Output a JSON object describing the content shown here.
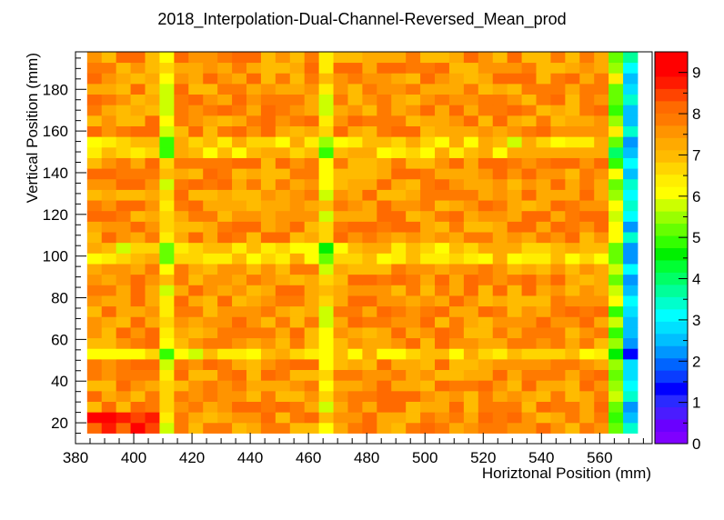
{
  "chart_data": {
    "type": "heatmap",
    "title": "2018_Interpolation-Dual-Channel-Reversed_Mean_prod",
    "xlabel": "Horiztonal Position (mm)",
    "ylabel": "Vertical Position (mm)",
    "xlim": [
      380,
      578
    ],
    "ylim": [
      10,
      198
    ],
    "zlim": [
      0,
      9.5
    ],
    "x_ticks": [
      380,
      400,
      420,
      440,
      460,
      480,
      500,
      520,
      540,
      560
    ],
    "y_ticks": [
      20,
      40,
      60,
      80,
      100,
      120,
      140,
      160,
      180
    ],
    "z_ticks": [
      0,
      1,
      2,
      3,
      4,
      5,
      6,
      7,
      8,
      9
    ],
    "x_edges": [
      384,
      573
    ],
    "y_edges": [
      15,
      198
    ],
    "nx": 38,
    "ny": 36,
    "palette": [
      "#7f00ff",
      "#6a00ff",
      "#4a1cff",
      "#2a2aff",
      "#0000ff",
      "#0a3cff",
      "#0064ff",
      "#0096ff",
      "#00bfff",
      "#00e0ff",
      "#00ffff",
      "#00ffcc",
      "#00ff99",
      "#00ff66",
      "#00ff33",
      "#00f000",
      "#33ff00",
      "#66ff00",
      "#99ff00",
      "#ccff00",
      "#ffff00",
      "#ffee00",
      "#ffd500",
      "#ffbb00",
      "#ffaa00",
      "#ff9400",
      "#ff7a00",
      "#ff6a00",
      "#ff4400",
      "#ff1a00",
      "#ff0000",
      "#ff0000"
    ],
    "colors": {
      "frame": "#000000",
      "background": "#ffffff"
    }
  }
}
